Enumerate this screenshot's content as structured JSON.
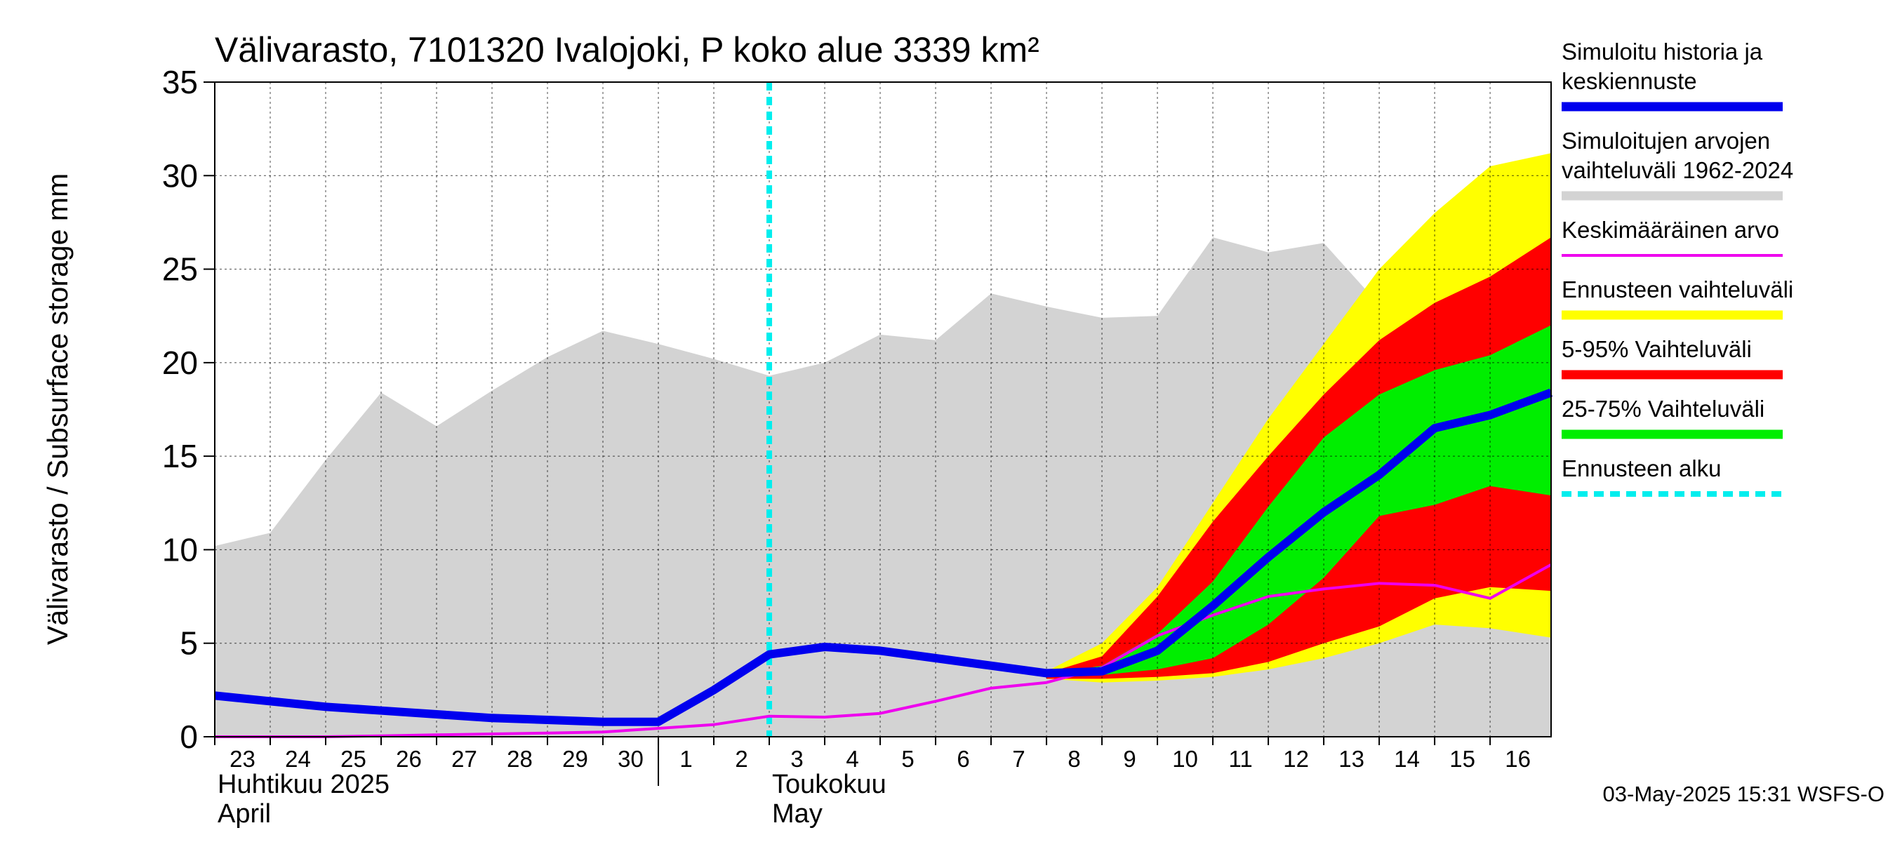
{
  "chart_data": {
    "type": "area",
    "title": "Välivarasto, 7101320 Ivalojoki, P koko alue 3339 km²",
    "ylabel": "Välivarasto / Subsurface storage  mm",
    "ylim": [
      0,
      35
    ],
    "yticks": [
      0,
      5,
      10,
      15,
      20,
      25,
      30,
      35
    ],
    "xlim": [
      0,
      24.1
    ],
    "x_tick_labels": [
      "23",
      "24",
      "25",
      "26",
      "27",
      "28",
      "29",
      "30",
      "1",
      "2",
      "3",
      "4",
      "5",
      "6",
      "7",
      "8",
      "9",
      "10",
      "11",
      "12",
      "13",
      "14",
      "15",
      "16"
    ],
    "month_labels": [
      {
        "fi": "Huhtikuu  2025",
        "en": "April",
        "start_index": 0
      },
      {
        "fi": "Toukokuu",
        "en": "May",
        "start_index": 10
      }
    ],
    "forecast_start": 10,
    "timestamp": "03-May-2025 15:31 WSFS-O",
    "colors": {
      "history": "#0000ee",
      "range_grey": "#d3d3d3",
      "mean": "#ee00ee",
      "ens_range": "#ffff00",
      "p5_95": "#ff0000",
      "p25_75": "#00ee00",
      "forecast_start": "#00eeee",
      "grid": "#000000"
    },
    "legend": [
      {
        "label": "Simuloitu historia ja keskiennuste",
        "color": "#0000ee",
        "style": "thick"
      },
      {
        "label": "Simuloitujen arvojen vaihteluväli 1962-2024",
        "color": "#d3d3d3",
        "style": "thick"
      },
      {
        "label": "Keskimääräinen arvo",
        "color": "#ee00ee",
        "style": "thin"
      },
      {
        "label": "Ennusteen vaihteluväli",
        "color": "#ffff00",
        "style": "thick"
      },
      {
        "label": "5-95% Vaihteluväli",
        "color": "#ff0000",
        "style": "thick"
      },
      {
        "label": "25-75% Vaihteluväli",
        "color": "#00ee00",
        "style": "thick"
      },
      {
        "label": "Ennusteen alku",
        "color": "#00eeee",
        "style": "dashed"
      }
    ],
    "series": [
      {
        "name": "Simuloitujen arvojen vaihteluväli 1962-2024 (max)",
        "x": [
          0,
          1,
          2,
          3,
          4,
          5,
          6,
          7,
          8,
          9,
          10,
          11,
          12,
          13,
          14,
          15,
          16,
          17,
          18,
          19,
          20,
          21,
          22,
          23,
          24.1
        ],
        "values": [
          10.2,
          10.9,
          14.8,
          18.4,
          16.6,
          18.5,
          20.3,
          21.7,
          21,
          20.2,
          19.3,
          20,
          21.5,
          21.2,
          23.7,
          23,
          22.4,
          22.5,
          26.7,
          25.9,
          26.4,
          23.1,
          24.9,
          26.3,
          28.3
        ]
      },
      {
        "name": "Simuloitujen arvojen vaihteluväli 1962-2024 (min)",
        "x": [
          0,
          1,
          2,
          3,
          4,
          5,
          6,
          7,
          8,
          9,
          10,
          11,
          12,
          13,
          14,
          15,
          16,
          17,
          18,
          19,
          20,
          21,
          22,
          23,
          24.1
        ],
        "values": [
          0,
          0,
          0,
          0,
          0,
          0,
          0,
          0,
          0,
          0,
          0,
          0,
          0,
          0,
          0,
          0,
          0,
          0,
          0,
          0,
          0,
          0,
          0,
          0,
          0
        ]
      },
      {
        "name": "Ennusteen vaihteluväli (max)",
        "x": [
          15,
          16,
          17,
          18,
          19,
          20,
          21,
          22,
          23,
          24.1
        ],
        "values": [
          3.5,
          5,
          8,
          12.5,
          17,
          21,
          25,
          28,
          30.5,
          31.2
        ]
      },
      {
        "name": "Ennusteen vaihteluväli (min)",
        "x": [
          15,
          16,
          17,
          18,
          19,
          20,
          21,
          22,
          23,
          24.1
        ],
        "values": [
          3.1,
          2.9,
          3,
          3.2,
          3.6,
          4.2,
          5,
          6,
          5.8,
          5.3
        ]
      },
      {
        "name": "5-95% Vaihteluväli (max)",
        "x": [
          15,
          16,
          17,
          18,
          19,
          20,
          21,
          22,
          23,
          24.1
        ],
        "values": [
          3.4,
          4.3,
          7.5,
          11.5,
          15,
          18.3,
          21.2,
          23.2,
          24.6,
          26.7
        ]
      },
      {
        "name": "5-95% Vaihteluväli (min)",
        "x": [
          15,
          16,
          17,
          18,
          19,
          20,
          21,
          22,
          23,
          24.1
        ],
        "values": [
          3.1,
          3.1,
          3.2,
          3.4,
          4,
          5,
          5.9,
          7.4,
          8,
          7.8
        ]
      },
      {
        "name": "25-75% Vaihteluväli (max)",
        "x": [
          15,
          16,
          17,
          18,
          19,
          20,
          21,
          22,
          23,
          24.1
        ],
        "values": [
          3.3,
          3.8,
          5.5,
          8.3,
          12.3,
          16,
          18.3,
          19.6,
          20.4,
          22
        ]
      },
      {
        "name": "25-75% Vaihteluväli (min)",
        "x": [
          15,
          16,
          17,
          18,
          19,
          20,
          21,
          22,
          23,
          24.1
        ],
        "values": [
          3.2,
          3.3,
          3.6,
          4.2,
          6,
          8.5,
          11.8,
          12.4,
          13.4,
          12.9
        ]
      },
      {
        "name": "Simuloitu historia ja keskiennuste",
        "x": [
          0,
          1,
          2,
          3,
          4,
          5,
          6,
          7,
          8,
          9,
          10,
          11,
          12,
          13,
          14,
          15,
          16,
          17,
          18,
          19,
          20,
          21,
          22,
          23,
          24.1
        ],
        "values": [
          2.2,
          1.9,
          1.6,
          1.4,
          1.2,
          1.0,
          0.9,
          0.8,
          0.8,
          2.5,
          4.4,
          4.8,
          4.6,
          4.2,
          3.8,
          3.4,
          3.5,
          4.6,
          7.0,
          9.6,
          12.0,
          14.0,
          16.5,
          17.2,
          18.4
        ]
      },
      {
        "name": "Keskimääräinen arvo",
        "x": [
          0,
          1,
          2,
          3,
          4,
          5,
          6,
          7,
          8,
          9,
          10,
          11,
          12,
          13,
          14,
          15,
          16,
          17,
          18,
          19,
          20,
          21,
          22,
          23,
          24.1
        ],
        "values": [
          0,
          0,
          0,
          0.05,
          0.1,
          0.15,
          0.2,
          0.25,
          0.45,
          0.65,
          1.1,
          1.05,
          1.25,
          1.9,
          2.6,
          2.9,
          3.7,
          5.4,
          6.5,
          7.5,
          7.9,
          8.2,
          8.1,
          7.4,
          9.2
        ]
      }
    ]
  }
}
